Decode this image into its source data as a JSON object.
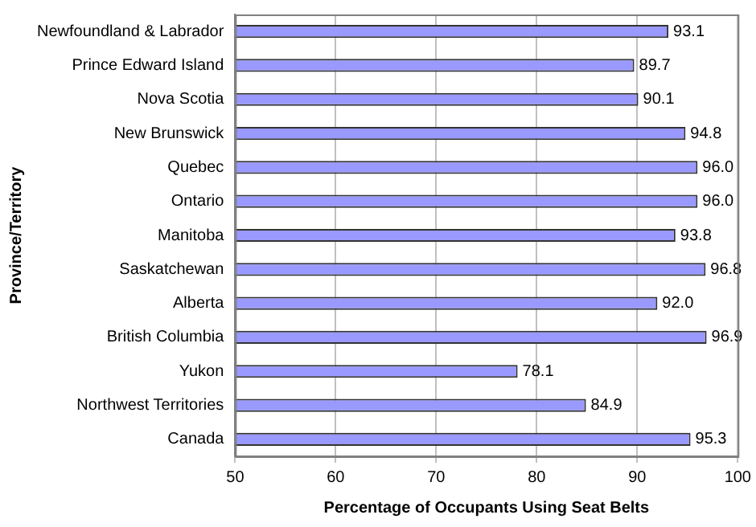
{
  "chart_data": {
    "type": "bar",
    "orientation": "horizontal",
    "xlabel": "Percentage of Occupants Using Seat Belts",
    "ylabel": "Province/Territory",
    "categories": [
      "Newfoundland & Labrador",
      "Prince Edward Island",
      "Nova Scotia",
      "New Brunswick",
      "Quebec",
      "Ontario",
      "Manitoba",
      "Saskatchewan",
      "Alberta",
      "British Columbia",
      "Yukon",
      "Northwest Territories",
      "Canada"
    ],
    "values": [
      93.1,
      89.7,
      90.1,
      94.8,
      96.0,
      96.0,
      93.8,
      96.8,
      92.0,
      96.9,
      78.1,
      84.9,
      95.3
    ],
    "value_labels": [
      "93.1",
      "89.7",
      "90.1",
      "94.8",
      "96.0",
      "96.0",
      "93.8",
      "96.8",
      "92.0",
      "96.9",
      "78.1",
      "84.9",
      "95.3"
    ],
    "color": "#9999ff",
    "xlim": [
      50,
      100
    ],
    "xticks": [
      50,
      60,
      70,
      80,
      90,
      100
    ],
    "grid": "x",
    "legend": false
  }
}
